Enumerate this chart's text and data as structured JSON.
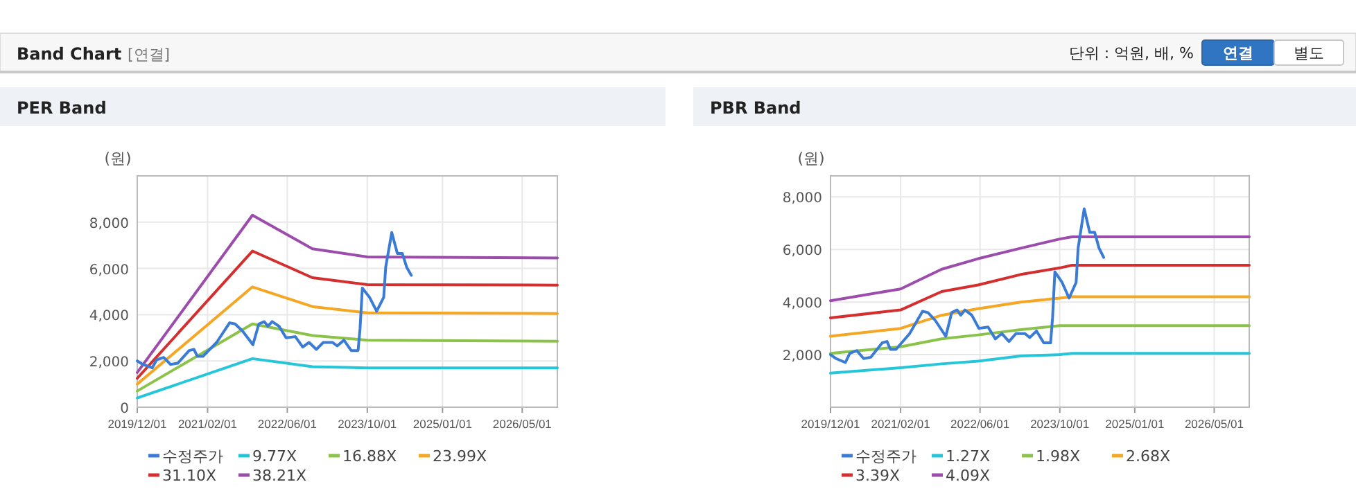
{
  "chart_data": [
    {
      "type": "line",
      "title": "PER Band",
      "ylabel": "(원)",
      "grid": true,
      "legend": "bottom",
      "annotations": [
        "Band Chart",
        "[연결]",
        "단위 : 억원, 배, %",
        "연결",
        "별도"
      ],
      "xlim": [
        "2019-12-01",
        "2026-12-01"
      ],
      "xticks": [
        {
          "value": "2019-12-01",
          "label": "2019/12/01"
        },
        {
          "value": "2021-02-01",
          "label": "2021/02/01"
        },
        {
          "value": "2022-06-01",
          "label": "2022/06/01"
        },
        {
          "value": "2023-10-01",
          "label": "2023/10/01"
        },
        {
          "value": "2025-01-01",
          "label": "2025/01/01"
        },
        {
          "value": "2026-05-01",
          "label": "2026/05/01"
        }
      ],
      "ylim": [
        0,
        10000
      ],
      "yticks": [
        0,
        {
          "value": 2000,
          "label": "2,000"
        },
        {
          "value": 4000,
          "label": "4,000"
        },
        {
          "value": 6000,
          "label": "6,000"
        },
        {
          "value": 8000,
          "label": "8,000"
        }
      ],
      "series": [
        {
          "name": "수정주가",
          "color": "#3a7bd5",
          "x": [
            "2019-12-01",
            "2020-01-04",
            "2020-03-01",
            "2020-03-28",
            "2020-05-10",
            "2020-06-20",
            "2020-08-03",
            "2020-10-12",
            "2020-11-10",
            "2020-12-01",
            "2021-01-04",
            "2021-03-28",
            "2021-06-15",
            "2021-07-18",
            "2021-09-01",
            "2021-11-04",
            "2021-12-10",
            "2022-01-12",
            "2022-02-03",
            "2022-03-01",
            "2022-04-12",
            "2022-05-25",
            "2022-07-20",
            "2022-09-03",
            "2022-10-12",
            "2022-11-25",
            "2023-01-06",
            "2023-03-03",
            "2023-04-01",
            "2023-05-12",
            "2023-06-25",
            "2023-08-06",
            "2023-08-18",
            "2023-09-01",
            "2023-10-15",
            "2023-11-27",
            "2024-01-09",
            "2024-01-21",
            "2024-02-27",
            "2024-04-01",
            "2024-05-01",
            "2024-05-28",
            "2024-06-25"
          ],
          "values": [
            2000,
            1850,
            1700,
            2050,
            2150,
            1850,
            1900,
            2450,
            2500,
            2200,
            2200,
            2800,
            3650,
            3600,
            3300,
            2700,
            3600,
            3700,
            3500,
            3700,
            3500,
            3000,
            3050,
            2600,
            2800,
            2500,
            2800,
            2800,
            2650,
            2900,
            2450,
            2450,
            3400,
            5150,
            4750,
            4150,
            4750,
            6050,
            7550,
            6650,
            6650,
            6050,
            5700
          ]
        },
        {
          "name": "9.77X",
          "color": "#26c6da",
          "x": [
            "2019-12-01",
            "2021-11-01",
            "2022-11-01",
            "2023-10-01",
            "2026-12-01"
          ],
          "values": [
            400,
            2100,
            1750,
            1700,
            1700
          ]
        },
        {
          "name": "16.88X",
          "color": "#8bc34a",
          "x": [
            "2019-12-01",
            "2021-11-01",
            "2022-11-01",
            "2023-10-01",
            "2026-12-01"
          ],
          "values": [
            700,
            3600,
            3100,
            2900,
            2850
          ]
        },
        {
          "name": "23.99X",
          "color": "#f5a623",
          "x": [
            "2019-12-01",
            "2021-11-01",
            "2022-11-01",
            "2023-10-01",
            "2026-12-01"
          ],
          "values": [
            1000,
            5200,
            4350,
            4080,
            4050
          ]
        },
        {
          "name": "31.10X",
          "color": "#d32f2f",
          "x": [
            "2019-12-01",
            "2021-11-01",
            "2022-11-01",
            "2023-10-01",
            "2026-12-01"
          ],
          "values": [
            1250,
            6750,
            5600,
            5300,
            5280
          ]
        },
        {
          "name": "38.21X",
          "color": "#9c4dab",
          "x": [
            "2019-12-01",
            "2021-11-01",
            "2022-11-01",
            "2023-10-01",
            "2026-12-01"
          ],
          "values": [
            1500,
            8300,
            6850,
            6500,
            6450
          ]
        }
      ]
    },
    {
      "type": "line",
      "title": "PBR Band",
      "ylabel": "(원)",
      "grid": true,
      "legend": "bottom",
      "xlim": [
        "2019-12-01",
        "2026-12-01"
      ],
      "xticks": [
        {
          "value": "2019-12-01",
          "label": "2019/12/01"
        },
        {
          "value": "2021-02-01",
          "label": "2021/02/01"
        },
        {
          "value": "2022-06-01",
          "label": "2022/06/01"
        },
        {
          "value": "2023-10-01",
          "label": "2023/10/01"
        },
        {
          "value": "2025-01-01",
          "label": "2025/01/01"
        },
        {
          "value": "2026-05-01",
          "label": "2026/05/01"
        }
      ],
      "ylim": [
        0,
        8800
      ],
      "yticks": [
        {
          "value": 2000,
          "label": "2,000"
        },
        {
          "value": 4000,
          "label": "4,000"
        },
        {
          "value": 6000,
          "label": "6,000"
        },
        {
          "value": 8000,
          "label": "8,000"
        }
      ],
      "series": [
        {
          "name": "수정주가",
          "color": "#3a7bd5",
          "x": [
            "2019-12-01",
            "2020-01-04",
            "2020-03-01",
            "2020-03-28",
            "2020-05-10",
            "2020-06-20",
            "2020-08-03",
            "2020-10-12",
            "2020-11-10",
            "2020-12-01",
            "2021-01-04",
            "2021-03-28",
            "2021-06-15",
            "2021-07-18",
            "2021-09-01",
            "2021-11-04",
            "2021-12-10",
            "2022-01-12",
            "2022-02-03",
            "2022-03-01",
            "2022-04-12",
            "2022-05-25",
            "2022-07-20",
            "2022-09-03",
            "2022-10-12",
            "2022-11-25",
            "2023-01-06",
            "2023-03-03",
            "2023-04-01",
            "2023-05-12",
            "2023-06-25",
            "2023-08-06",
            "2023-08-18",
            "2023-09-01",
            "2023-10-15",
            "2023-11-27",
            "2024-01-09",
            "2024-01-21",
            "2024-02-27",
            "2024-04-01",
            "2024-05-01",
            "2024-05-28",
            "2024-06-25"
          ],
          "values": [
            2000,
            1850,
            1700,
            2050,
            2150,
            1850,
            1900,
            2450,
            2500,
            2200,
            2200,
            2800,
            3650,
            3600,
            3300,
            2700,
            3600,
            3700,
            3500,
            3700,
            3500,
            3000,
            3050,
            2600,
            2800,
            2500,
            2800,
            2800,
            2650,
            2900,
            2450,
            2450,
            3400,
            5150,
            4750,
            4150,
            4750,
            6050,
            7550,
            6650,
            6650,
            6050,
            5700
          ]
        },
        {
          "name": "1.27X",
          "color": "#26c6da",
          "x": [
            "2019-12-01",
            "2021-02-01",
            "2021-10-10",
            "2022-05-20",
            "2023-02-05",
            "2023-10-01",
            "2023-12-15",
            "2026-12-01"
          ],
          "values": [
            1300,
            1500,
            1650,
            1750,
            1950,
            2000,
            2050,
            2050
          ]
        },
        {
          "name": "1.98X",
          "color": "#8bc34a",
          "x": [
            "2019-12-01",
            "2021-02-01",
            "2021-10-10",
            "2022-05-20",
            "2023-02-05",
            "2023-10-01",
            "2023-12-15",
            "2026-12-01"
          ],
          "values": [
            2050,
            2300,
            2600,
            2750,
            2950,
            3100,
            3100,
            3100
          ]
        },
        {
          "name": "2.68X",
          "color": "#f5a623",
          "x": [
            "2019-12-01",
            "2021-02-01",
            "2021-10-10",
            "2022-05-20",
            "2023-02-05",
            "2023-10-01",
            "2023-12-15",
            "2026-12-01"
          ],
          "values": [
            2700,
            3000,
            3500,
            3750,
            4000,
            4150,
            4200,
            4200
          ]
        },
        {
          "name": "3.39X",
          "color": "#d32f2f",
          "x": [
            "2019-12-01",
            "2021-02-01",
            "2021-10-10",
            "2022-05-20",
            "2023-02-05",
            "2023-10-01",
            "2023-12-15",
            "2026-12-01"
          ],
          "values": [
            3400,
            3700,
            4400,
            4650,
            5050,
            5300,
            5400,
            5400
          ]
        },
        {
          "name": "4.09X",
          "color": "#9c4dab",
          "x": [
            "2019-12-01",
            "2021-02-01",
            "2021-10-10",
            "2022-05-20",
            "2023-02-05",
            "2023-10-01",
            "2023-12-15",
            "2026-12-01"
          ],
          "values": [
            4050,
            4500,
            5250,
            5650,
            6050,
            6400,
            6480,
            6480
          ]
        }
      ]
    }
  ]
}
